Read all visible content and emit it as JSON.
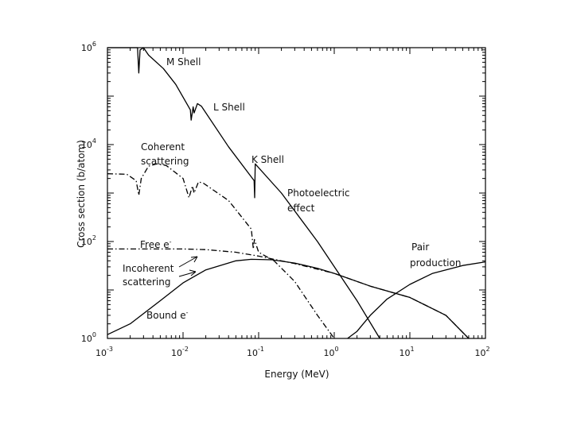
{
  "chart_data": {
    "type": "line",
    "title": "",
    "xlabel": "Energy (MeV)",
    "ylabel": "Cross section (b/atom)",
    "xscale": "log",
    "yscale": "log",
    "xlim": [
      0.001,
      100
    ],
    "ylim": [
      1,
      1000000
    ],
    "x_ticks": [
      {
        "base": "10",
        "exp": "-3",
        "value": 0.001
      },
      {
        "base": "10",
        "exp": "-2",
        "value": 0.01
      },
      {
        "base": "10",
        "exp": "-1",
        "value": 0.1
      },
      {
        "base": "10",
        "exp": "0",
        "value": 1
      },
      {
        "base": "10",
        "exp": "1",
        "value": 10
      },
      {
        "base": "10",
        "exp": "2",
        "value": 100
      }
    ],
    "y_ticks": [
      {
        "base": "10",
        "exp": "0",
        "value": 1
      },
      {
        "base": "10",
        "exp": "2",
        "value": 100
      },
      {
        "base": "10",
        "exp": "4",
        "value": 10000
      },
      {
        "base": "10",
        "exp": "6",
        "value": 1000000
      }
    ],
    "series": [
      {
        "name": "Photoelectric effect",
        "style": "solid",
        "points": [
          [
            0.001,
            1000000
          ],
          [
            0.0025,
            1000000
          ],
          [
            0.0026,
            300000
          ],
          [
            0.0027,
            900000
          ],
          [
            0.003,
            1000000
          ],
          [
            0.0035,
            700000
          ],
          [
            0.0055,
            370000
          ],
          [
            0.008,
            175000
          ],
          [
            0.0125,
            52000
          ],
          [
            0.0128,
            32000
          ],
          [
            0.0136,
            60000
          ],
          [
            0.014,
            45000
          ],
          [
            0.0155,
            70000
          ],
          [
            0.0175,
            62000
          ],
          [
            0.04,
            9000
          ],
          [
            0.087,
            1800
          ],
          [
            0.0885,
            800
          ],
          [
            0.09,
            4000
          ],
          [
            0.2,
            1000
          ],
          [
            0.6,
            100
          ],
          [
            2,
            6
          ],
          [
            4,
            1
          ]
        ]
      },
      {
        "name": "Coherent scattering",
        "style": "dashdot",
        "points": [
          [
            0.001,
            2500
          ],
          [
            0.0018,
            2450
          ],
          [
            0.0024,
            1800
          ],
          [
            0.0026,
            900
          ],
          [
            0.0028,
            2000
          ],
          [
            0.0035,
            3600
          ],
          [
            0.0045,
            4000
          ],
          [
            0.006,
            3700
          ],
          [
            0.01,
            2000
          ],
          [
            0.012,
            800
          ],
          [
            0.0133,
            1400
          ],
          [
            0.014,
            1000
          ],
          [
            0.016,
            1700
          ],
          [
            0.0185,
            1600
          ],
          [
            0.04,
            700
          ],
          [
            0.08,
            180
          ],
          [
            0.085,
            70
          ],
          [
            0.088,
            110
          ],
          [
            0.1,
            60
          ],
          [
            0.16,
            40
          ],
          [
            0.3,
            15
          ],
          [
            0.6,
            3
          ],
          [
            1,
            1
          ]
        ]
      },
      {
        "name": "Incoherent scattering (Free e-)",
        "style": "dashdot",
        "points": [
          [
            0.001,
            70
          ],
          [
            0.005,
            70
          ],
          [
            0.01,
            70
          ],
          [
            0.02,
            68
          ],
          [
            0.05,
            60
          ],
          [
            0.1,
            50
          ],
          [
            0.3,
            35
          ],
          [
            1,
            22
          ],
          [
            3,
            12
          ],
          [
            10,
            7
          ],
          [
            30,
            3
          ],
          [
            60,
            1
          ]
        ]
      },
      {
        "name": "Incoherent scattering (Bound e-)",
        "style": "solid",
        "points": [
          [
            0.001,
            1.2
          ],
          [
            0.002,
            2
          ],
          [
            0.005,
            6
          ],
          [
            0.01,
            14
          ],
          [
            0.02,
            26
          ],
          [
            0.05,
            40
          ],
          [
            0.08,
            43
          ],
          [
            0.15,
            42
          ],
          [
            0.3,
            36
          ],
          [
            0.6,
            28
          ],
          [
            1,
            22
          ],
          [
            3,
            12
          ],
          [
            10,
            7
          ],
          [
            30,
            3
          ],
          [
            60,
            1
          ]
        ]
      },
      {
        "name": "Pair production",
        "style": "solid",
        "points": [
          [
            1.5,
            1
          ],
          [
            2,
            1.4
          ],
          [
            3,
            3
          ],
          [
            5,
            6.5
          ],
          [
            10,
            13
          ],
          [
            20,
            22
          ],
          [
            50,
            32
          ],
          [
            100,
            38
          ]
        ]
      }
    ],
    "annotations": {
      "m_shell": "M Shell",
      "l_shell": "L Shell",
      "k_shell": "K Shell",
      "coherent_1": "Coherent",
      "coherent_2": "scattering",
      "photo_1": "Photoelectric",
      "photo_2": "effect",
      "free": "Free e",
      "free_sup": "-",
      "incoherent_1": "Incoherent",
      "incoherent_2": "scattering",
      "bound": "Bound e",
      "bound_sup": "-",
      "pair_1": "Pair",
      "pair_2": "production"
    }
  }
}
